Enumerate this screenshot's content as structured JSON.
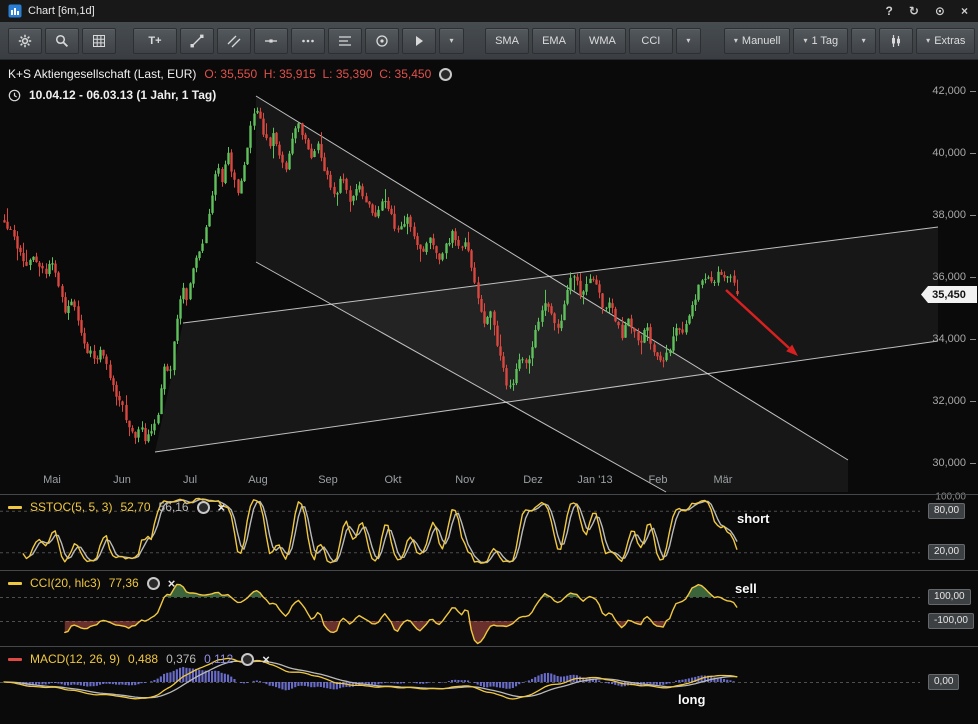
{
  "window": {
    "title": "Chart [6m,1d]",
    "controls": [
      {
        "name": "help",
        "glyph": "?"
      },
      {
        "name": "refresh",
        "glyph": "↻"
      },
      {
        "name": "options",
        "glyph": "⊙"
      },
      {
        "name": "close",
        "glyph": "×"
      }
    ]
  },
  "toolbar": {
    "text_tool": "T+",
    "indicator_buttons": [
      "SMA",
      "EMA",
      "WMA",
      "CCI"
    ],
    "mode_dropdown": "Manuell",
    "interval_dropdown": "1 Tag",
    "extras_dropdown": "Extras",
    "caret": "▾"
  },
  "chart": {
    "legend": {
      "instrument": "K+S Aktiengesellschaft (Last, EUR)",
      "ohlc": "O: 35,550  H: 35,915  L: 35,390  C: 35,450",
      "range": "10.04.12 - 06.03.13 (1 Jahr, 1 Tag)"
    },
    "price_badge": "35,450"
  },
  "chart_data": {
    "type": "candlestick",
    "instrument": "K+S Aktiengesellschaft",
    "currency": "EUR",
    "interval": "1 Tag",
    "date_range": "10.04.12 - 06.03.13",
    "ohlc_last": {
      "open": 35.55,
      "high": 35.915,
      "low": 35.39,
      "close": 35.45
    },
    "y_ticks": [
      {
        "value": 42,
        "text": "42,000"
      },
      {
        "value": 40,
        "text": "40,000"
      },
      {
        "value": 38,
        "text": "38,000"
      },
      {
        "value": 36,
        "text": "36,000"
      },
      {
        "value": 34,
        "text": "34,000"
      },
      {
        "value": 32,
        "text": "32,000"
      },
      {
        "value": 30,
        "text": "30,000"
      }
    ],
    "x_months": [
      [
        "Mai",
        52
      ],
      [
        "Jun",
        122
      ],
      [
        "Jul",
        190
      ],
      [
        "Aug",
        258
      ],
      [
        "Sep",
        328
      ],
      [
        "Okt",
        393
      ],
      [
        "Nov",
        465
      ],
      [
        "Dez",
        533
      ],
      [
        "Jan '13",
        595
      ],
      [
        "Feb",
        658
      ],
      [
        "Mär",
        723
      ]
    ],
    "price_path": [
      [
        0,
        37.9
      ],
      [
        10,
        37.6
      ],
      [
        18,
        36.9
      ],
      [
        26,
        36.3
      ],
      [
        34,
        36.7
      ],
      [
        44,
        36.1
      ],
      [
        52,
        36.5
      ],
      [
        58,
        35.8
      ],
      [
        64,
        34.9
      ],
      [
        72,
        35.3
      ],
      [
        80,
        34.3
      ],
      [
        88,
        33.6
      ],
      [
        96,
        33.3
      ],
      [
        102,
        33.7
      ],
      [
        108,
        32.9
      ],
      [
        116,
        32.2
      ],
      [
        122,
        31.8
      ],
      [
        128,
        31.1
      ],
      [
        134,
        30.8
      ],
      [
        140,
        31.3
      ],
      [
        146,
        30.7
      ],
      [
        152,
        31.1
      ],
      [
        158,
        31.7
      ],
      [
        164,
        33.2
      ],
      [
        170,
        33.0
      ],
      [
        176,
        34.4
      ],
      [
        182,
        35.9
      ],
      [
        187,
        35.2
      ],
      [
        193,
        36.3
      ],
      [
        199,
        36.7
      ],
      [
        205,
        37.4
      ],
      [
        211,
        38.5
      ],
      [
        217,
        39.6
      ],
      [
        222,
        38.9
      ],
      [
        227,
        40.1
      ],
      [
        232,
        39.4
      ],
      [
        238,
        38.8
      ],
      [
        244,
        39.7
      ],
      [
        250,
        40.8
      ],
      [
        256,
        41.4
      ],
      [
        262,
        40.8
      ],
      [
        268,
        40.2
      ],
      [
        274,
        40.6
      ],
      [
        280,
        39.9
      ],
      [
        286,
        39.5
      ],
      [
        292,
        40.5
      ],
      [
        298,
        41.1
      ],
      [
        304,
        40.4
      ],
      [
        310,
        39.8
      ],
      [
        318,
        40.2
      ],
      [
        326,
        39.3
      ],
      [
        334,
        38.6
      ],
      [
        342,
        39.2
      ],
      [
        350,
        38.5
      ],
      [
        358,
        39.1
      ],
      [
        366,
        38.4
      ],
      [
        374,
        37.9
      ],
      [
        382,
        38.5
      ],
      [
        390,
        38.0
      ],
      [
        398,
        37.4
      ],
      [
        406,
        37.9
      ],
      [
        414,
        37.3
      ],
      [
        422,
        36.8
      ],
      [
        430,
        37.2
      ],
      [
        438,
        36.5
      ],
      [
        446,
        37.0
      ],
      [
        453,
        37.5
      ],
      [
        460,
        36.9
      ],
      [
        466,
        37.1
      ],
      [
        472,
        36.3
      ],
      [
        478,
        35.2
      ],
      [
        484,
        34.5
      ],
      [
        490,
        34.9
      ],
      [
        496,
        34.0
      ],
      [
        502,
        33.2
      ],
      [
        508,
        32.4
      ],
      [
        514,
        32.7
      ],
      [
        520,
        33.5
      ],
      [
        526,
        33.1
      ],
      [
        532,
        33.8
      ],
      [
        538,
        34.6
      ],
      [
        544,
        35.3
      ],
      [
        550,
        34.8
      ],
      [
        556,
        34.3
      ],
      [
        562,
        34.8
      ],
      [
        568,
        35.7
      ],
      [
        574,
        36.1
      ],
      [
        580,
        35.4
      ],
      [
        586,
        35.8
      ],
      [
        592,
        36.0
      ],
      [
        598,
        35.5
      ],
      [
        604,
        35.0
      ],
      [
        610,
        35.3
      ],
      [
        616,
        34.6
      ],
      [
        622,
        34.1
      ],
      [
        628,
        34.6
      ],
      [
        634,
        34.2
      ],
      [
        640,
        33.9
      ],
      [
        646,
        34.4
      ],
      [
        652,
        33.8
      ],
      [
        658,
        33.4
      ],
      [
        664,
        33.3
      ],
      [
        670,
        33.8
      ],
      [
        676,
        34.3
      ],
      [
        682,
        34.1
      ],
      [
        688,
        34.7
      ],
      [
        694,
        35.2
      ],
      [
        700,
        35.8
      ],
      [
        706,
        36.1
      ],
      [
        712,
        35.8
      ],
      [
        718,
        36.2
      ],
      [
        724,
        35.9
      ],
      [
        730,
        36.1
      ],
      [
        737,
        35.45
      ]
    ],
    "channels": {
      "ascending": {
        "upper": [
          [
            183,
            323
          ],
          [
            938,
            227
          ]
        ],
        "lower": [
          [
            155,
            452
          ],
          [
            938,
            341
          ]
        ]
      },
      "descending": {
        "upper": [
          [
            256,
            96
          ],
          [
            848,
            460
          ]
        ],
        "lower": [
          [
            256,
            262
          ],
          [
            666,
            492
          ]
        ]
      }
    },
    "forecast_arrow": {
      "from": [
        726,
        290
      ],
      "to": [
        798,
        356
      ],
      "color": "#d92020"
    },
    "indicators": [
      {
        "name": "SSTOC",
        "label": "SSTOC(5, 5, 3)",
        "values_shown": [
          "52,70",
          "56,16"
        ],
        "annotation": "short",
        "axis": [
          {
            "level": 100,
            "text": "100,00",
            "badge": false
          },
          {
            "level": 80,
            "text": "80,00",
            "badge": true
          },
          {
            "level": 20,
            "text": "20,00",
            "badge": true
          }
        ]
      },
      {
        "name": "CCI",
        "label": "CCI(20, hlc3)",
        "values_shown": [
          "77,36"
        ],
        "annotation": "sell",
        "axis": [
          {
            "level": 100,
            "text": "100,00",
            "badge": true
          },
          {
            "level": -100,
            "text": "-100,00",
            "badge": true
          }
        ]
      },
      {
        "name": "MACD",
        "label": "MACD(12, 26, 9)",
        "values_shown": [
          "0,488",
          "0,376",
          "0,112"
        ],
        "annotation": "long",
        "axis": [
          {
            "level": 0,
            "text": "0,00",
            "badge": true
          }
        ]
      }
    ]
  }
}
